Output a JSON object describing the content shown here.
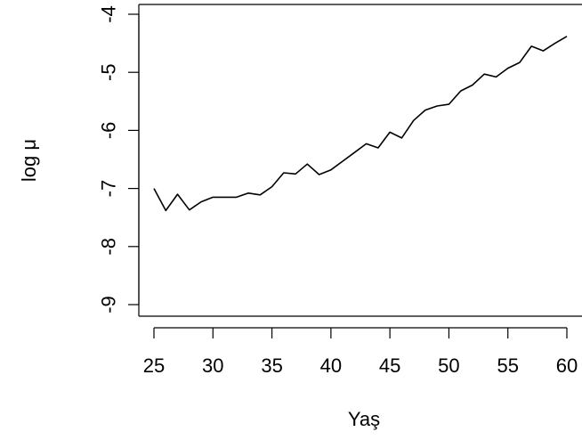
{
  "chart_data": {
    "type": "line",
    "xlabel": "Yaş",
    "ylabel": "log μ",
    "xlim": [
      25,
      60
    ],
    "ylim": [
      -9,
      -4
    ],
    "x_ticks": [
      "25",
      "30",
      "35",
      "40",
      "45",
      "50",
      "55",
      "60"
    ],
    "y_ticks": [
      "-4",
      "-5",
      "-6",
      "-7",
      "-8",
      "-9"
    ],
    "grid": false,
    "line_color": "#000000",
    "series": [
      {
        "x": [
          25,
          26,
          27,
          28,
          29,
          30,
          31,
          32,
          33,
          34,
          35,
          36,
          37,
          38,
          39,
          40,
          41,
          42,
          43,
          44,
          45,
          46,
          47,
          48,
          49,
          50,
          51,
          52,
          53,
          54,
          55,
          56,
          57,
          58,
          59,
          60
        ],
        "values": [
          -7.0,
          -7.38,
          -7.1,
          -7.37,
          -7.23,
          -7.15,
          -7.15,
          -7.15,
          -7.08,
          -7.11,
          -6.97,
          -6.73,
          -6.75,
          -6.58,
          -6.76,
          -6.68,
          -6.53,
          -6.38,
          -6.23,
          -6.3,
          -6.03,
          -6.13,
          -5.83,
          -5.65,
          -5.58,
          -5.55,
          -5.32,
          -5.22,
          -5.03,
          -5.08,
          -4.93,
          -4.83,
          -4.55,
          -4.63,
          -4.5,
          -4.38
        ]
      }
    ]
  }
}
